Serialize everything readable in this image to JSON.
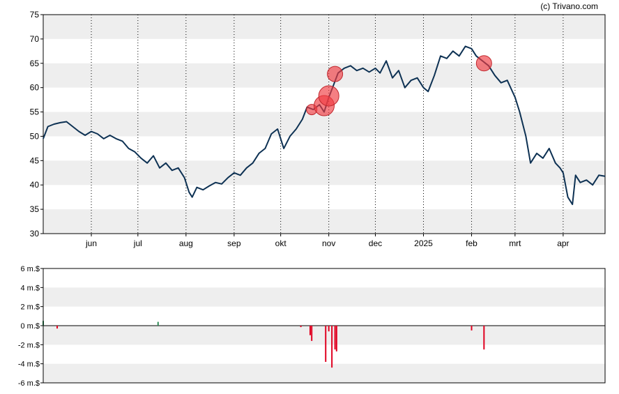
{
  "watermark": "(c) Trivano.com",
  "colors": {
    "price_line": "#0d3153",
    "band": "#eeeeee",
    "insider_marker": "#ef3a40",
    "bar_buy": "#2e8b57",
    "bar_sell": "#e00020",
    "axis": "#000000",
    "vgrid": "#000000"
  },
  "chart_data": [
    {
      "type": "line",
      "title": "",
      "xlabel": "",
      "ylabel": "",
      "ylim": [
        30,
        75
      ],
      "yticks": [
        30,
        35,
        40,
        45,
        50,
        55,
        60,
        65,
        70,
        75
      ],
      "grid": "alternating horizontal bands, dotted vertical month lines",
      "x_tick_labels": [
        {
          "label": "jun",
          "date": "2024-06-01"
        },
        {
          "label": "jul",
          "date": "2024-07-01"
        },
        {
          "label": "aug",
          "date": "2024-08-01"
        },
        {
          "label": "sep",
          "date": "2024-09-01"
        },
        {
          "label": "okt",
          "date": "2024-10-01"
        },
        {
          "label": "nov",
          "date": "2024-11-01"
        },
        {
          "label": "dec",
          "date": "2024-12-01"
        },
        {
          "label": "2025",
          "date": "2025-01-01"
        },
        {
          "label": "feb",
          "date": "2025-02-01"
        },
        {
          "label": "mrt",
          "date": "2025-03-01"
        },
        {
          "label": "apr",
          "date": "2025-04-01"
        }
      ],
      "xlim": [
        "2024-05-01",
        "2025-04-28"
      ],
      "series": [
        {
          "points": [
            [
              "2024-05-01",
              49.5
            ],
            [
              "2024-05-04",
              52.0
            ],
            [
              "2024-05-08",
              52.5
            ],
            [
              "2024-05-12",
              52.8
            ],
            [
              "2024-05-16",
              53.0
            ],
            [
              "2024-05-20",
              52.0
            ],
            [
              "2024-05-24",
              51.0
            ],
            [
              "2024-05-28",
              50.2
            ],
            [
              "2024-06-01",
              51.0
            ],
            [
              "2024-06-05",
              50.5
            ],
            [
              "2024-06-09",
              49.5
            ],
            [
              "2024-06-13",
              50.2
            ],
            [
              "2024-06-17",
              49.5
            ],
            [
              "2024-06-21",
              49.0
            ],
            [
              "2024-06-25",
              47.5
            ],
            [
              "2024-06-29",
              46.8
            ],
            [
              "2024-07-03",
              45.5
            ],
            [
              "2024-07-07",
              44.5
            ],
            [
              "2024-07-11",
              46.0
            ],
            [
              "2024-07-15",
              43.5
            ],
            [
              "2024-07-19",
              44.5
            ],
            [
              "2024-07-23",
              43.0
            ],
            [
              "2024-07-27",
              43.5
            ],
            [
              "2024-07-31",
              41.5
            ],
            [
              "2024-08-03",
              38.5
            ],
            [
              "2024-08-05",
              37.5
            ],
            [
              "2024-08-08",
              39.5
            ],
            [
              "2024-08-12",
              39.0
            ],
            [
              "2024-08-16",
              39.8
            ],
            [
              "2024-08-20",
              40.5
            ],
            [
              "2024-08-24",
              40.2
            ],
            [
              "2024-08-28",
              41.5
            ],
            [
              "2024-09-01",
              42.5
            ],
            [
              "2024-09-05",
              42.0
            ],
            [
              "2024-09-09",
              43.5
            ],
            [
              "2024-09-13",
              44.5
            ],
            [
              "2024-09-17",
              46.5
            ],
            [
              "2024-09-21",
              47.5
            ],
            [
              "2024-09-25",
              50.5
            ],
            [
              "2024-09-29",
              51.5
            ],
            [
              "2024-10-03",
              47.5
            ],
            [
              "2024-10-07",
              50.0
            ],
            [
              "2024-10-11",
              51.5
            ],
            [
              "2024-10-15",
              53.5
            ],
            [
              "2024-10-18",
              56.0
            ],
            [
              "2024-10-22",
              55.5
            ],
            [
              "2024-10-26",
              56.5
            ],
            [
              "2024-10-29",
              55.0
            ],
            [
              "2024-11-01",
              58.0
            ],
            [
              "2024-11-04",
              60.5
            ],
            [
              "2024-11-07",
              63.0
            ],
            [
              "2024-11-11",
              64.0
            ],
            [
              "2024-11-15",
              64.5
            ],
            [
              "2024-11-19",
              63.5
            ],
            [
              "2024-11-23",
              64.0
            ],
            [
              "2024-11-27",
              63.2
            ],
            [
              "2024-12-01",
              64.0
            ],
            [
              "2024-12-04",
              63.0
            ],
            [
              "2024-12-08",
              65.5
            ],
            [
              "2024-12-12",
              62.0
            ],
            [
              "2024-12-16",
              63.5
            ],
            [
              "2024-12-20",
              60.0
            ],
            [
              "2024-12-24",
              61.5
            ],
            [
              "2024-12-28",
              62.0
            ],
            [
              "2025-01-01",
              60.0
            ],
            [
              "2025-01-04",
              59.2
            ],
            [
              "2025-01-08",
              62.5
            ],
            [
              "2025-01-12",
              66.5
            ],
            [
              "2025-01-16",
              66.0
            ],
            [
              "2025-01-20",
              67.5
            ],
            [
              "2025-01-24",
              66.5
            ],
            [
              "2025-01-28",
              68.5
            ],
            [
              "2025-02-01",
              68.0
            ],
            [
              "2025-02-04",
              66.5
            ],
            [
              "2025-02-08",
              65.5
            ],
            [
              "2025-02-12",
              64.5
            ],
            [
              "2025-02-16",
              62.5
            ],
            [
              "2025-02-20",
              61.0
            ],
            [
              "2025-02-24",
              61.5
            ],
            [
              "2025-03-01",
              58.0
            ],
            [
              "2025-03-04",
              55.0
            ],
            [
              "2025-03-08",
              50.0
            ],
            [
              "2025-03-11",
              44.5
            ],
            [
              "2025-03-15",
              46.5
            ],
            [
              "2025-03-19",
              45.5
            ],
            [
              "2025-03-23",
              47.5
            ],
            [
              "2025-03-27",
              44.5
            ],
            [
              "2025-03-30",
              43.5
            ],
            [
              "2025-04-01",
              42.5
            ],
            [
              "2025-04-04",
              37.5
            ],
            [
              "2025-04-07",
              36.0
            ],
            [
              "2025-04-09",
              42.0
            ],
            [
              "2025-04-12",
              40.5
            ],
            [
              "2025-04-16",
              41.0
            ],
            [
              "2025-04-20",
              40.0
            ],
            [
              "2025-04-24",
              42.0
            ],
            [
              "2025-04-28",
              41.8
            ]
          ]
        }
      ],
      "markers": [
        {
          "date": "2024-10-21",
          "value": 55.5,
          "size": 1
        },
        {
          "date": "2024-10-29",
          "value": 56.3,
          "size": 3
        },
        {
          "date": "2024-11-01",
          "value": 58.3,
          "size": 3
        },
        {
          "date": "2024-11-05",
          "value": 62.8,
          "size": 2
        },
        {
          "date": "2025-02-09",
          "value": 65.0,
          "size": 2
        }
      ]
    },
    {
      "type": "bar",
      "title": "",
      "xlabel": "",
      "ylabel": "",
      "ylim": [
        -6,
        6
      ],
      "unit": "m.$",
      "y_tick_labels": [
        "6 m.$",
        "4 m.$",
        "2 m.$",
        "0 m.$",
        "-2 m.$",
        "-4 m.$",
        "-6 m.$"
      ],
      "yticks": [
        6,
        4,
        2,
        0,
        -2,
        -4,
        -6
      ],
      "bars": [
        {
          "date": "2024-05-01",
          "value": 0.5
        },
        {
          "date": "2024-05-10",
          "value": -0.3
        },
        {
          "date": "2024-07-14",
          "value": 0.4
        },
        {
          "date": "2024-10-14",
          "value": -0.15
        },
        {
          "date": "2024-10-20",
          "value": -1.0
        },
        {
          "date": "2024-10-21",
          "value": -1.6
        },
        {
          "date": "2024-10-30",
          "value": -3.8
        },
        {
          "date": "2024-11-01",
          "value": -0.6
        },
        {
          "date": "2024-11-03",
          "value": -4.4
        },
        {
          "date": "2024-11-05",
          "value": -2.5
        },
        {
          "date": "2024-11-06",
          "value": -2.7
        },
        {
          "date": "2025-02-01",
          "value": -0.5
        },
        {
          "date": "2025-02-09",
          "value": -2.5
        }
      ]
    }
  ]
}
